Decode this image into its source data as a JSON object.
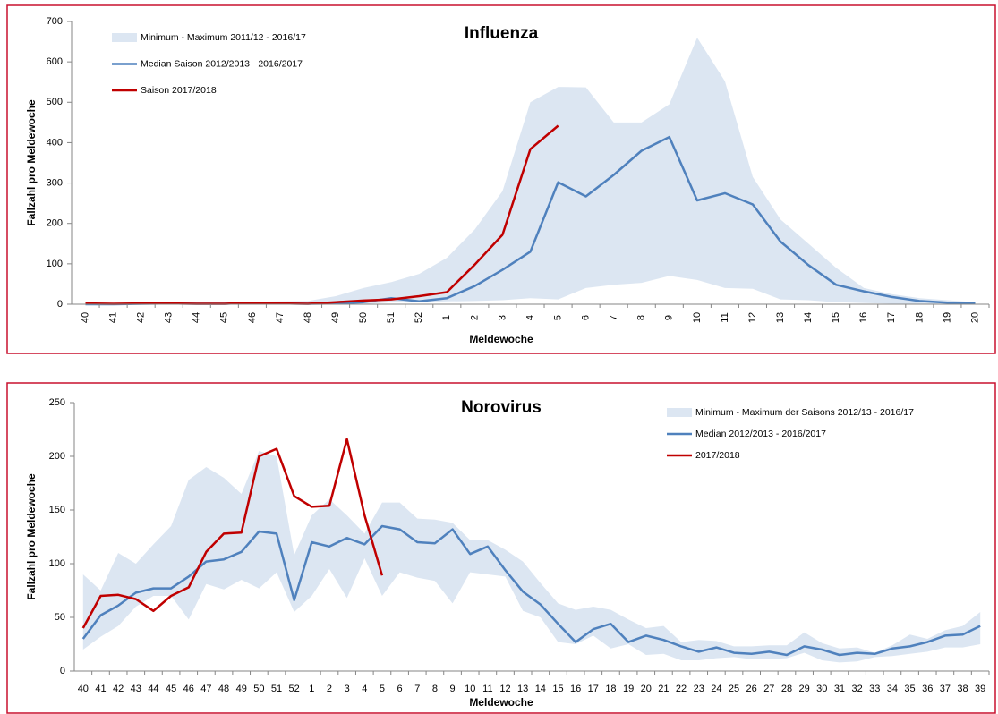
{
  "chart_data": [
    {
      "type": "line",
      "title": "Influenza",
      "xlabel": "Meldewoche",
      "ylabel": "Fallzahl pro Meldewoche",
      "categories": [
        "40",
        "41",
        "42",
        "43",
        "44",
        "45",
        "46",
        "47",
        "48",
        "49",
        "50",
        "51",
        "52",
        "1",
        "2",
        "3",
        "4",
        "5",
        "6",
        "7",
        "8",
        "9",
        "10",
        "11",
        "12",
        "13",
        "14",
        "15",
        "16",
        "17",
        "18",
        "19",
        "20"
      ],
      "ylim": [
        0,
        700
      ],
      "yticks": [
        0,
        100,
        200,
        300,
        400,
        500,
        600,
        700
      ],
      "grid": false,
      "legend": "upper left",
      "xtick_rotation": 90,
      "series": [
        {
          "name": "Minimum - Maximum 2011/12 - 2016/17",
          "color": "#dce6f2",
          "type": "band",
          "min": [
            0,
            0,
            0,
            0,
            0,
            0,
            0,
            0,
            0,
            0,
            0,
            5,
            5,
            7,
            8,
            10,
            15,
            12,
            40,
            48,
            53,
            70,
            60,
            40,
            38,
            12,
            10,
            5,
            3,
            1,
            0,
            0,
            0
          ],
          "max": [
            3,
            3,
            4,
            5,
            4,
            4,
            6,
            7,
            8,
            20,
            40,
            55,
            75,
            115,
            185,
            280,
            500,
            538,
            537,
            450,
            450,
            495,
            660,
            552,
            315,
            210,
            150,
            90,
            40,
            25,
            15,
            10,
            5
          ]
        },
        {
          "name": "Median Saison 2012/2013 - 2016/2017",
          "color": "#4f81bd",
          "type": "line",
          "values": [
            0,
            0,
            1,
            2,
            1,
            1,
            3,
            2,
            1,
            2,
            5,
            15,
            7,
            15,
            45,
            85,
            130,
            302,
            267,
            320,
            380,
            414,
            257,
            275,
            247,
            155,
            97,
            48,
            32,
            18,
            8,
            4,
            2
          ]
        },
        {
          "name": "Saison 2017/2018",
          "color": "#c00000",
          "type": "line",
          "values": [
            2,
            1,
            2,
            2,
            1,
            1,
            4,
            2,
            1,
            5,
            9,
            12,
            20,
            30,
            98,
            172,
            384,
            442,
            null,
            null,
            null,
            null,
            null,
            null,
            null,
            null,
            null,
            null,
            null,
            null,
            null,
            null,
            null
          ]
        }
      ]
    },
    {
      "type": "line",
      "title": "Norovirus",
      "xlabel": "Meldewoche",
      "ylabel": "Fallzahl pro Meldewoche",
      "categories": [
        "40",
        "41",
        "42",
        "43",
        "44",
        "45",
        "46",
        "47",
        "48",
        "49",
        "50",
        "51",
        "52",
        "1",
        "2",
        "3",
        "4",
        "5",
        "6",
        "7",
        "8",
        "9",
        "10",
        "11",
        "12",
        "13",
        "14",
        "15",
        "16",
        "17",
        "18",
        "19",
        "20",
        "21",
        "22",
        "23",
        "24",
        "25",
        "26",
        "27",
        "28",
        "29",
        "30",
        "31",
        "32",
        "33",
        "34",
        "35",
        "36",
        "37",
        "38",
        "39"
      ],
      "ylim": [
        0,
        250
      ],
      "yticks": [
        0,
        50,
        100,
        150,
        200,
        250
      ],
      "grid": false,
      "legend": "upper right",
      "xtick_rotation": 0,
      "series": [
        {
          "name": "Minimum - Maximum der Saisons 2012/13 - 2016/17",
          "color": "#dce6f2",
          "type": "band",
          "min": [
            20,
            32,
            42,
            60,
            70,
            70,
            48,
            81,
            76,
            85,
            77,
            92,
            55,
            70,
            95,
            68,
            105,
            70,
            92,
            87,
            84,
            63,
            92,
            90,
            88,
            56,
            50,
            27,
            25,
            33,
            21,
            25,
            15,
            16,
            10,
            10,
            12,
            13,
            11,
            11,
            12,
            17,
            10,
            8,
            9,
            13,
            14,
            16,
            18,
            22,
            22,
            25
          ],
          "max": [
            90,
            75,
            110,
            100,
            118,
            135,
            178,
            190,
            180,
            165,
            205,
            200,
            108,
            145,
            160,
            145,
            128,
            157,
            157,
            142,
            141,
            138,
            122,
            122,
            113,
            102,
            82,
            63,
            57,
            60,
            57,
            48,
            40,
            42,
            27,
            29,
            28,
            23,
            23,
            24,
            24,
            36,
            26,
            21,
            22,
            17,
            24,
            34,
            30,
            38,
            42,
            55
          ]
        },
        {
          "name": "Median 2012/2013 - 2016/2017",
          "color": "#4f81bd",
          "type": "line",
          "values": [
            30,
            52,
            61,
            73,
            77,
            77,
            88,
            102,
            104,
            111,
            130,
            128,
            66,
            120,
            116,
            124,
            118,
            135,
            132,
            120,
            119,
            132,
            109,
            116,
            94,
            74,
            62,
            44,
            27,
            39,
            44,
            27,
            33,
            29,
            23,
            18,
            22,
            17,
            16,
            18,
            15,
            23,
            20,
            15,
            17,
            16,
            21,
            23,
            27,
            33,
            34,
            42
          ]
        },
        {
          "name": "2017/2018",
          "color": "#c00000",
          "type": "line",
          "values": [
            40,
            70,
            71,
            67,
            56,
            70,
            78,
            111,
            128,
            129,
            200,
            207,
            163,
            153,
            154,
            216,
            145,
            89,
            null,
            null,
            null,
            null,
            null,
            null,
            null,
            null,
            null,
            null,
            null,
            null,
            null,
            null,
            null,
            null,
            null,
            null,
            null,
            null,
            null,
            null,
            null,
            null,
            null,
            null,
            null,
            null,
            null,
            null,
            null,
            null,
            null,
            null
          ]
        }
      ]
    }
  ]
}
